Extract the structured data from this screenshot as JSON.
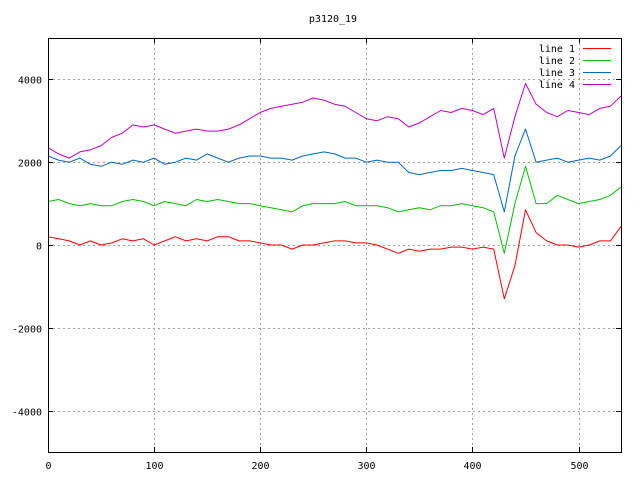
{
  "chart_data": {
    "type": "line",
    "title": "p3120_19",
    "xlabel": "",
    "ylabel": "",
    "xlim": [
      0,
      540
    ],
    "ylim": [
      -5000,
      5000
    ],
    "x_ticks": [
      0,
      100,
      200,
      300,
      400,
      500
    ],
    "y_ticks": [
      -4000,
      -2000,
      0,
      2000,
      4000
    ],
    "grid": true,
    "legend_position": "top-right",
    "x": [
      0,
      10,
      20,
      30,
      40,
      50,
      60,
      70,
      80,
      90,
      100,
      110,
      120,
      130,
      140,
      150,
      160,
      170,
      180,
      190,
      200,
      210,
      220,
      230,
      240,
      250,
      260,
      270,
      280,
      290,
      300,
      310,
      320,
      330,
      340,
      350,
      360,
      370,
      380,
      390,
      400,
      410,
      420,
      430,
      440,
      450,
      460,
      470,
      480,
      490,
      500,
      510,
      520,
      530,
      540
    ],
    "series": [
      {
        "name": "line 1",
        "color": "#ff0000",
        "values": [
          200,
          150,
          100,
          0,
          100,
          0,
          50,
          150,
          100,
          150,
          0,
          100,
          200,
          100,
          150,
          100,
          200,
          200,
          100,
          100,
          50,
          0,
          0,
          -100,
          0,
          0,
          50,
          100,
          100,
          50,
          50,
          0,
          -100,
          -200,
          -100,
          -150,
          -100,
          -100,
          -50,
          -50,
          -100,
          -50,
          -100,
          -1300,
          -500,
          850,
          300,
          100,
          0,
          0,
          -50,
          0,
          100,
          100,
          450
        ]
      },
      {
        "name": "line 2",
        "color": "#00c000",
        "values": [
          1050,
          1100,
          1000,
          950,
          1000,
          950,
          950,
          1050,
          1100,
          1050,
          950,
          1050,
          1000,
          950,
          1100,
          1050,
          1100,
          1050,
          1000,
          1000,
          950,
          900,
          850,
          800,
          950,
          1000,
          1000,
          1000,
          1050,
          950,
          950,
          950,
          900,
          800,
          850,
          900,
          850,
          950,
          950,
          1000,
          950,
          900,
          800,
          -200,
          1000,
          1900,
          1000,
          1000,
          1200,
          1100,
          1000,
          1050,
          1100,
          1200,
          1400
        ]
      },
      {
        "name": "line 3",
        "color": "#0066cc",
        "values": [
          2150,
          2050,
          2000,
          2100,
          1950,
          1900,
          2000,
          1950,
          2050,
          2000,
          2100,
          1950,
          2000,
          2100,
          2050,
          2200,
          2100,
          2000,
          2100,
          2150,
          2150,
          2100,
          2100,
          2050,
          2150,
          2200,
          2250,
          2200,
          2100,
          2100,
          2000,
          2050,
          2000,
          2000,
          1750,
          1700,
          1750,
          1800,
          1800,
          1850,
          1800,
          1750,
          1700,
          800,
          2150,
          2800,
          2000,
          2050,
          2100,
          2000,
          2050,
          2100,
          2050,
          2150,
          2400
        ]
      },
      {
        "name": "line 4",
        "color": "#c000c0",
        "values": [
          2350,
          2200,
          2100,
          2250,
          2300,
          2400,
          2600,
          2700,
          2900,
          2850,
          2900,
          2800,
          2700,
          2750,
          2800,
          2750,
          2750,
          2800,
          2900,
          3050,
          3200,
          3300,
          3350,
          3400,
          3450,
          3550,
          3500,
          3400,
          3350,
          3200,
          3050,
          3000,
          3100,
          3050,
          2850,
          2950,
          3100,
          3250,
          3200,
          3300,
          3250,
          3150,
          3300,
          2100,
          3100,
          3900,
          3400,
          3200,
          3100,
          3250,
          3200,
          3150,
          3300,
          3350,
          3600
        ]
      }
    ]
  }
}
